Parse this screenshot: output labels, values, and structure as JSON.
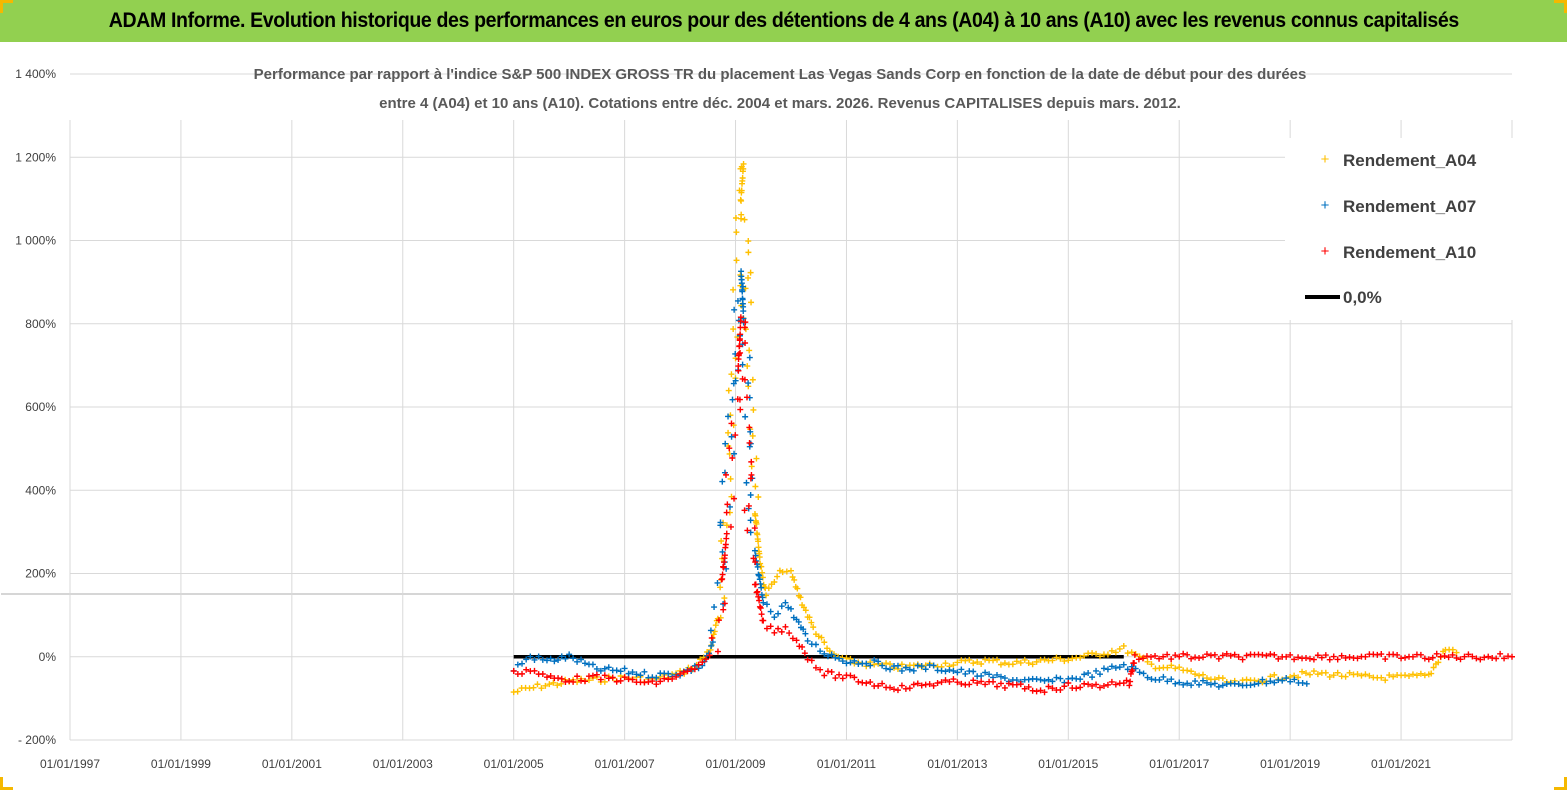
{
  "header": {
    "title": "ADAM Informe. Evolution historique des performances en euros pour des détentions de 4 ans (A04) à 10 ans (A10) avec les revenus connus capitalisés"
  },
  "colors": {
    "banner": "#92d050",
    "A04": "#ffc000",
    "A07": "#0070c0",
    "A10": "#ff0000",
    "zero": "#000000",
    "grid": "#d9d9d9"
  },
  "chart_data": {
    "type": "scatter",
    "title_lines": [
      "Performance par rapport à l'indice S&P 500 INDEX GROSS TR  du placement Las Vegas Sands Corp en fonction de la date de début pour des durées",
      "entre 4 (A04) et 10 ans (A10). Cotations entre déc. 2004 et mars. 2026. Revenus CAPITALISES depuis mars. 2012."
    ],
    "y_ticks": [
      "1 400%",
      "1 200%",
      "1 000%",
      "800%",
      "600%",
      "400%",
      "200%",
      "0%",
      "- 200%"
    ],
    "y_tick_values": [
      1400,
      1200,
      1000,
      800,
      600,
      400,
      200,
      0,
      -200
    ],
    "x_ticks": [
      "01/01/1997",
      "01/01/1999",
      "01/01/2001",
      "01/01/2003",
      "01/01/2005",
      "01/01/2007",
      "01/01/2009",
      "01/01/2011",
      "01/01/2013",
      "01/01/2015",
      "01/01/2017",
      "01/01/2019",
      "01/01/2021"
    ],
    "x_tick_values": [
      1997,
      1999,
      2001,
      2003,
      2005,
      2007,
      2009,
      2011,
      2013,
      2015,
      2017,
      2019,
      2021
    ],
    "xlim": [
      1997,
      2023
    ],
    "ylim": [
      -200,
      1400
    ],
    "grid": true,
    "legend_position": "top-right",
    "series": [
      {
        "name": "Rendement_A04",
        "color": "#ffc000",
        "points": [
          [
            2005.0,
            -85
          ],
          [
            2005.5,
            -70
          ],
          [
            2006.0,
            -60
          ],
          [
            2006.5,
            -55
          ],
          [
            2007.0,
            -50
          ],
          [
            2007.5,
            -55
          ],
          [
            2008.0,
            -40
          ],
          [
            2008.3,
            -20
          ],
          [
            2008.55,
            20
          ],
          [
            2008.7,
            100
          ],
          [
            2008.8,
            300
          ],
          [
            2008.9,
            500
          ],
          [
            2009.0,
            700
          ],
          [
            2009.05,
            900
          ],
          [
            2009.1,
            1100
          ],
          [
            2009.15,
            1190
          ],
          [
            2009.2,
            900
          ],
          [
            2009.25,
            600
          ],
          [
            2009.35,
            350
          ],
          [
            2009.45,
            220
          ],
          [
            2009.55,
            150
          ],
          [
            2009.7,
            180
          ],
          [
            2009.85,
            210
          ],
          [
            2010.0,
            200
          ],
          [
            2010.2,
            130
          ],
          [
            2010.4,
            70
          ],
          [
            2010.7,
            10
          ],
          [
            2011.0,
            -10
          ],
          [
            2011.5,
            -20
          ],
          [
            2012.0,
            -25
          ],
          [
            2012.5,
            -20
          ],
          [
            2013.0,
            -15
          ],
          [
            2013.5,
            -10
          ],
          [
            2014.0,
            -15
          ],
          [
            2014.5,
            -10
          ],
          [
            2015.0,
            -5
          ],
          [
            2015.5,
            5
          ],
          [
            2016.0,
            20
          ],
          [
            2016.5,
            -20
          ],
          [
            2017.0,
            -30
          ],
          [
            2017.5,
            -50
          ],
          [
            2018.0,
            -65
          ],
          [
            2018.5,
            -55
          ],
          [
            2019.0,
            -45
          ],
          [
            2019.5,
            -40
          ],
          [
            2020.0,
            -45
          ],
          [
            2020.5,
            -50
          ],
          [
            2021.0,
            -50
          ],
          [
            2021.5,
            -45
          ],
          [
            2021.8,
            20
          ],
          [
            2022.0,
            10
          ]
        ]
      },
      {
        "name": "Rendement_A07",
        "color": "#0070c0",
        "points": [
          [
            2005.0,
            -30
          ],
          [
            2005.3,
            0
          ],
          [
            2005.6,
            -10
          ],
          [
            2006.0,
            0
          ],
          [
            2006.5,
            -30
          ],
          [
            2007.0,
            -35
          ],
          [
            2007.5,
            -45
          ],
          [
            2008.0,
            -40
          ],
          [
            2008.4,
            -20
          ],
          [
            2008.6,
            30
          ],
          [
            2008.75,
            200
          ],
          [
            2008.85,
            400
          ],
          [
            2008.95,
            600
          ],
          [
            2009.05,
            780
          ],
          [
            2009.1,
            930
          ],
          [
            2009.15,
            800
          ],
          [
            2009.25,
            450
          ],
          [
            2009.35,
            250
          ],
          [
            2009.5,
            130
          ],
          [
            2009.7,
            100
          ],
          [
            2009.9,
            130
          ],
          [
            2010.1,
            90
          ],
          [
            2010.3,
            40
          ],
          [
            2010.6,
            10
          ],
          [
            2011.0,
            -10
          ],
          [
            2011.5,
            -15
          ],
          [
            2012.0,
            -30
          ],
          [
            2012.5,
            -25
          ],
          [
            2013.0,
            -35
          ],
          [
            2013.5,
            -45
          ],
          [
            2014.0,
            -55
          ],
          [
            2014.5,
            -60
          ],
          [
            2015.0,
            -55
          ],
          [
            2015.5,
            -40
          ],
          [
            2016.0,
            -20
          ],
          [
            2016.5,
            -50
          ],
          [
            2017.0,
            -60
          ],
          [
            2017.5,
            -65
          ],
          [
            2018.0,
            -70
          ],
          [
            2018.5,
            -60
          ],
          [
            2019.0,
            -55
          ],
          [
            2019.3,
            -65
          ]
        ]
      },
      {
        "name": "Rendement_A10",
        "color": "#ff0000",
        "points": [
          [
            2005.0,
            -40
          ],
          [
            2005.3,
            -30
          ],
          [
            2005.6,
            -50
          ],
          [
            2006.0,
            -55
          ],
          [
            2006.5,
            -50
          ],
          [
            2007.0,
            -55
          ],
          [
            2007.5,
            -65
          ],
          [
            2008.0,
            -45
          ],
          [
            2008.4,
            -20
          ],
          [
            2008.6,
            10
          ],
          [
            2008.75,
            180
          ],
          [
            2008.85,
            300
          ],
          [
            2008.95,
            500
          ],
          [
            2009.05,
            700
          ],
          [
            2009.1,
            820
          ],
          [
            2009.15,
            650
          ],
          [
            2009.25,
            350
          ],
          [
            2009.35,
            180
          ],
          [
            2009.5,
            80
          ],
          [
            2009.7,
            60
          ],
          [
            2009.9,
            70
          ],
          [
            2010.1,
            40
          ],
          [
            2010.3,
            0
          ],
          [
            2010.6,
            -40
          ],
          [
            2011.0,
            -50
          ],
          [
            2011.5,
            -65
          ],
          [
            2012.0,
            -75
          ],
          [
            2012.5,
            -65
          ],
          [
            2013.0,
            -60
          ],
          [
            2013.5,
            -65
          ],
          [
            2014.0,
            -70
          ],
          [
            2014.5,
            -80
          ],
          [
            2015.0,
            -70
          ],
          [
            2015.5,
            -70
          ],
          [
            2016.0,
            -60
          ],
          [
            2016.1,
            -65
          ],
          [
            2016.2,
            0
          ],
          [
            2017.0,
            0
          ],
          [
            2018.0,
            0
          ],
          [
            2019.0,
            0
          ],
          [
            2020.0,
            0
          ],
          [
            2021.0,
            0
          ],
          [
            2022.0,
            0
          ],
          [
            2023.0,
            0
          ]
        ]
      },
      {
        "name": "0,0%",
        "color": "#000000",
        "type": "line",
        "points": [
          [
            2005.0,
            0
          ],
          [
            2016.0,
            0
          ]
        ]
      }
    ]
  }
}
